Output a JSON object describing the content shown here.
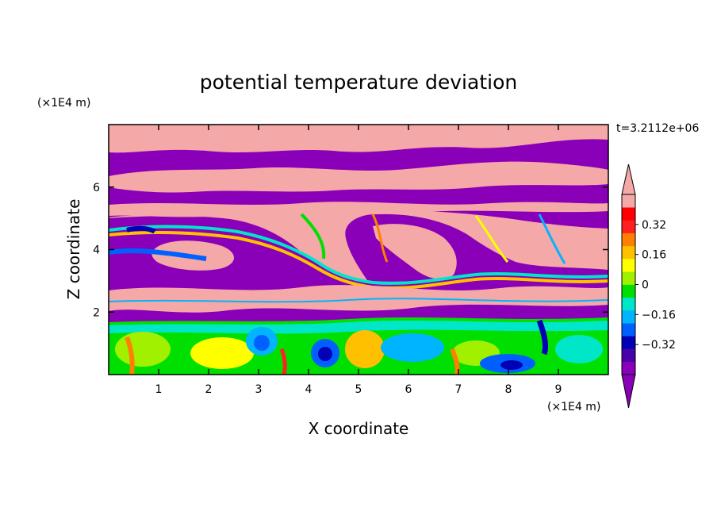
{
  "chart_data": {
    "type": "heatmap",
    "title": "potential temperature deviation",
    "xlabel": "X coordinate",
    "ylabel": "Z coordinate",
    "x_unit": "(×1E4 m)",
    "y_unit": "(×1E4 m)",
    "time_label": "t=3.2112e+06",
    "xlim": [
      0,
      10
    ],
    "ylim": [
      0,
      8
    ],
    "x_ticks": [
      "1",
      "2",
      "3",
      "4",
      "5",
      "6",
      "7",
      "8",
      "9"
    ],
    "y_ticks": [
      "2",
      "4",
      "6"
    ],
    "colorbar": {
      "levels": [
        -0.48,
        -0.4,
        -0.32,
        -0.24,
        -0.16,
        -0.08,
        0,
        0.08,
        0.16,
        0.24,
        0.32,
        0.4,
        0.48
      ],
      "tick_labels": [
        "0.32",
        "0.16",
        "0",
        "−0.16",
        "−0.32"
      ],
      "tick_values": [
        0.32,
        0.16,
        0,
        -0.16,
        -0.32
      ],
      "colors": [
        "#8a00b8",
        "#4a00a8",
        "#0000b4",
        "#0060ff",
        "#00b4ff",
        "#00e6c8",
        "#00e000",
        "#a0f000",
        "#ffff00",
        "#ffc000",
        "#ff8000",
        "#ff2020",
        "#ff0000",
        "#f4a8a8"
      ],
      "extend": "both"
    }
  }
}
